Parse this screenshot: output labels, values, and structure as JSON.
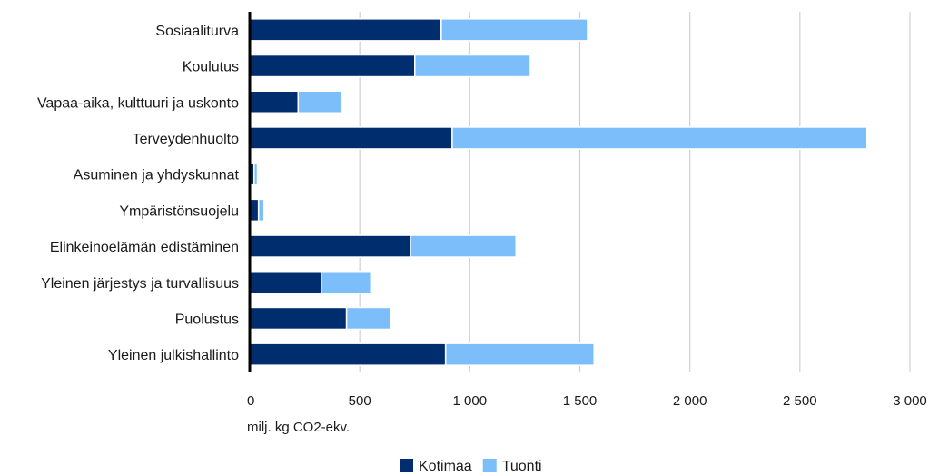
{
  "chart_data": {
    "type": "bar",
    "orientation": "horizontal",
    "stacked": true,
    "categories": [
      "Sosiaaliturva",
      "Koulutus",
      "Vapaa-aika, kulttuuri ja uskonto",
      "Terveydenhuolto",
      "Asuminen ja yhdyskunnat",
      "Ympäristönsuojelu",
      "Elinkeinoelämän edistäminen",
      "Yleinen järjestys ja turvallisuus",
      "Puolustus",
      "Yleinen julkishallinto"
    ],
    "series": [
      {
        "name": "Kotimaa",
        "color": "#002d6e",
        "values": [
          870,
          750,
          220,
          920,
          20,
          40,
          730,
          325,
          440,
          890
        ]
      },
      {
        "name": "Tuonti",
        "color": "#7cbefa",
        "values": [
          665,
          525,
          200,
          1885,
          15,
          25,
          480,
          225,
          200,
          675
        ]
      }
    ],
    "xlabel": "milj. kg CO2-ekv.",
    "ylabel": "",
    "xlim": [
      0,
      3000
    ],
    "xticks": [
      0,
      500,
      1000,
      1500,
      2000,
      2500,
      3000
    ],
    "xtick_labels": [
      "0",
      "500",
      "1 000",
      "1 500",
      "2 000",
      "2 500",
      "3 000"
    ],
    "grid": "vertical",
    "legend_position": "bottom-center"
  }
}
